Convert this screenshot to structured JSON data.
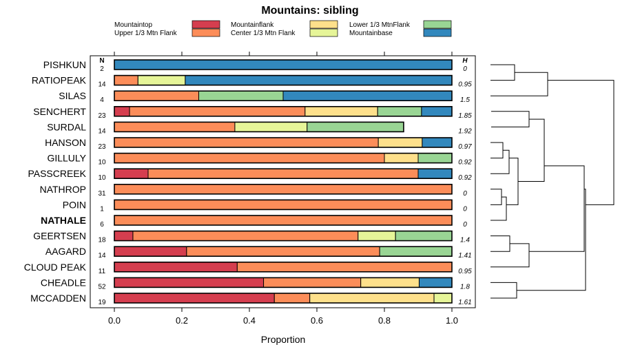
{
  "chart_data": {
    "type": "bar",
    "orientation": "horizontal-stacked",
    "title": "Mountains: sibling",
    "xlabel": "Proportion",
    "xlim": [
      0,
      1
    ],
    "xticks": [
      "0.0",
      "0.2",
      "0.4",
      "0.6",
      "0.8",
      "1.0"
    ],
    "n_header": "N",
    "h_header": "H",
    "categories_legend": [
      {
        "name": "Mountaintop",
        "color": "#d53e4f"
      },
      {
        "name": "Upper 1/3 Mtn Flank",
        "color": "#fc8d59"
      },
      {
        "name": "Mountainflank",
        "color": "#fee08b"
      },
      {
        "name": "Center 1/3 Mtn Flank",
        "color": "#e6f598"
      },
      {
        "name": "Lower 1/3 MtnFlank",
        "color": "#99d594"
      },
      {
        "name": "Mountainbase",
        "color": "#3288bd"
      }
    ],
    "rows": [
      {
        "label": "PISHKUN",
        "n": "2",
        "h": "0",
        "bold": false,
        "segments": [
          0,
          0,
          0,
          0,
          0,
          1.0
        ]
      },
      {
        "label": "RATIOPEAK",
        "n": "14",
        "h": "0.95",
        "bold": false,
        "segments": [
          0,
          0.07,
          0,
          0.14,
          0,
          0.79
        ]
      },
      {
        "label": "SILAS",
        "n": "4",
        "h": "1.5",
        "bold": false,
        "segments": [
          0,
          0.25,
          0,
          0,
          0.25,
          0.5
        ]
      },
      {
        "label": "SENCHERT",
        "n": "23",
        "h": "1.85",
        "bold": false,
        "segments": [
          0.045,
          0.52,
          0.215,
          0,
          0.13,
          0.09
        ]
      },
      {
        "label": "SURDAL",
        "n": "14",
        "h": "1.92",
        "bold": false,
        "segments": [
          0,
          0.357,
          0,
          0.214,
          0.286,
          0
        ]
      },
      {
        "label": "HANSON",
        "n": "23",
        "h": "0.97",
        "bold": false,
        "segments": [
          0,
          0.782,
          0.13,
          0,
          0,
          0.088
        ]
      },
      {
        "label": "GILLULY",
        "n": "10",
        "h": "0.92",
        "bold": false,
        "segments": [
          0,
          0.8,
          0.1,
          0,
          0.1,
          0
        ]
      },
      {
        "label": "PASSCREEK",
        "n": "10",
        "h": "0.92",
        "bold": false,
        "segments": [
          0.1,
          0.8,
          0,
          0,
          0,
          0.1
        ]
      },
      {
        "label": "NATHROP",
        "n": "31",
        "h": "0",
        "bold": false,
        "segments": [
          0,
          1.0,
          0,
          0,
          0,
          0
        ]
      },
      {
        "label": "POIN",
        "n": "1",
        "h": "0",
        "bold": false,
        "segments": [
          0,
          1.0,
          0,
          0,
          0,
          0
        ]
      },
      {
        "label": "NATHALE",
        "n": "6",
        "h": "0",
        "bold": true,
        "segments": [
          0,
          1.0,
          0,
          0,
          0,
          0
        ]
      },
      {
        "label": "GEERTSEN",
        "n": "18",
        "h": "1.4",
        "bold": false,
        "segments": [
          0.055,
          0.667,
          0,
          0.111,
          0.167,
          0
        ]
      },
      {
        "label": "AAGARD",
        "n": "14",
        "h": "1.41",
        "bold": false,
        "segments": [
          0.214,
          0.572,
          0,
          0,
          0.214,
          0
        ]
      },
      {
        "label": "CLOUD PEAK",
        "n": "11",
        "h": "0.95",
        "bold": false,
        "segments": [
          0.364,
          0.636,
          0,
          0,
          0,
          0
        ]
      },
      {
        "label": "CHEADLE",
        "n": "52",
        "h": "1.8",
        "bold": false,
        "segments": [
          0.442,
          0.288,
          0.173,
          0,
          0,
          0.097
        ]
      },
      {
        "label": "MCCADDEN",
        "n": "19",
        "h": "1.61",
        "bold": false,
        "segments": [
          0.474,
          0.105,
          0.368,
          0.053,
          0,
          0
        ]
      }
    ]
  }
}
